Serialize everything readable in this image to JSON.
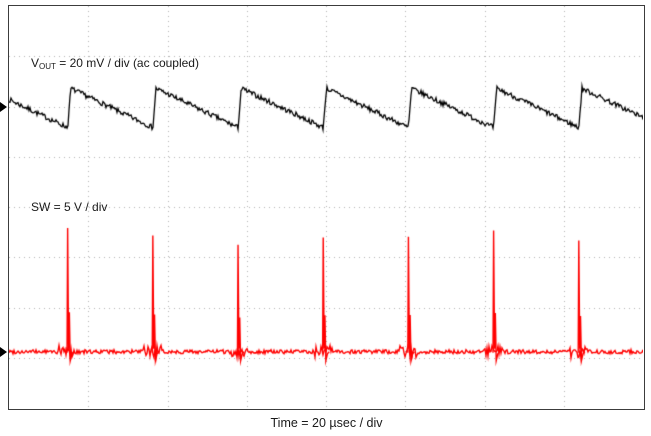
{
  "figure": {
    "bottom_label": "Time = 20 µsec / div",
    "ch1_label": {
      "prefix": "V",
      "subscript": "OUT",
      "rest": " = 20 mV / div (ac coupled)"
    },
    "ch2_label": "SW = 5 V / div"
  },
  "chart_data": {
    "type": "line",
    "title": "",
    "xlabel": "Time = 20 µsec / div",
    "grid": "dotted",
    "x_divisions": 8,
    "y_divisions": 8,
    "time_per_div_us": 20,
    "x_range_us": [
      0,
      160
    ],
    "colors": {
      "background": "#ffffff",
      "grid": "#b0b0b0",
      "border": "#3c3c3c",
      "vout_trace": "#000000",
      "sw_trace": "#ff0000",
      "text": "#1a1a1a"
    },
    "series": [
      {
        "name": "VOUT",
        "label": "VOUT = 20 mV / div (ac coupled)",
        "color": "#000000",
        "scale": "20 mV/div",
        "coupling": "ac",
        "shape": "sawtooth-ripple",
        "mv_per_div": 20,
        "center_div_from_top": 2.0,
        "period_us": 21.5,
        "first_edge_us": 14.8,
        "rise_us": 0.8,
        "peak_mv": 7.2,
        "trough_mv": -8.4,
        "noise_mv": 1.0
      },
      {
        "name": "SW",
        "label": "SW = 5 V / div",
        "color": "#ff0000",
        "scale": "5 V/div",
        "shape": "pulse-train",
        "v_per_div": 5,
        "baseline_div_from_top": 6.88,
        "period_us": 21.5,
        "first_pulse_us": 14.8,
        "pulse_v": 11.4,
        "undershoot_v": -0.9,
        "noise_v": 0.2,
        "pulse_count_visible": 7
      }
    ],
    "annotations": [
      {
        "text": "VOUT = 20 mV / div (ac coupled)",
        "color": "#000000",
        "position": "upper-left"
      },
      {
        "text": "SW = 5 V / div",
        "color": "#000000",
        "position": "middle-left"
      }
    ]
  }
}
